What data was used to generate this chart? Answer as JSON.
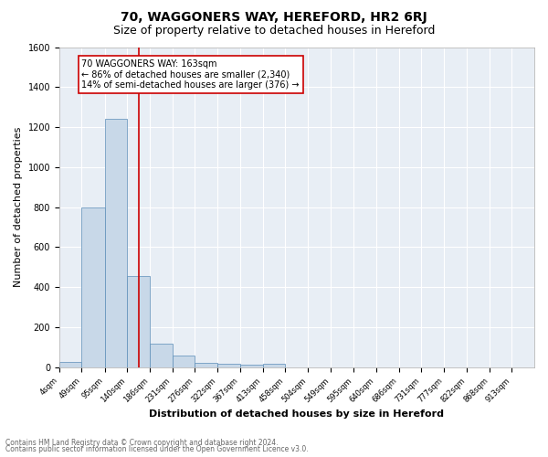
{
  "title": "70, WAGGONERS WAY, HEREFORD, HR2 6RJ",
  "subtitle": "Size of property relative to detached houses in Hereford",
  "xlabel": "Distribution of detached houses by size in Hereford",
  "ylabel": "Number of detached properties",
  "footnote1": "Contains HM Land Registry data © Crown copyright and database right 2024.",
  "footnote2": "Contains public sector information licensed under the Open Government Licence v3.0.",
  "bins": [
    "4sqm",
    "49sqm",
    "95sqm",
    "140sqm",
    "186sqm",
    "231sqm",
    "276sqm",
    "322sqm",
    "367sqm",
    "413sqm",
    "458sqm",
    "504sqm",
    "549sqm",
    "595sqm",
    "640sqm",
    "686sqm",
    "731sqm",
    "777sqm",
    "822sqm",
    "868sqm",
    "913sqm"
  ],
  "bin_edges": [
    4,
    49,
    95,
    140,
    186,
    231,
    276,
    322,
    367,
    413,
    458,
    504,
    549,
    595,
    640,
    686,
    731,
    777,
    822,
    868,
    913
  ],
  "bar_heights": [
    25,
    800,
    1240,
    455,
    120,
    60,
    20,
    18,
    15,
    18,
    0,
    0,
    0,
    0,
    0,
    0,
    0,
    0,
    0,
    0
  ],
  "bar_color": "#c8d8e8",
  "bar_edge_color": "#5b8db8",
  "property_value": 163,
  "vline_color": "#cc0000",
  "annotation_line1": "70 WAGGONERS WAY: 163sqm",
  "annotation_line2": "← 86% of detached houses are smaller (2,340)",
  "annotation_line3": "14% of semi-detached houses are larger (376) →",
  "annotation_box_color": "white",
  "annotation_box_edge": "#cc0000",
  "ylim": [
    0,
    1600
  ],
  "yticks": [
    0,
    200,
    400,
    600,
    800,
    1000,
    1200,
    1400,
    1600
  ],
  "plot_bg_color": "#e8eef5",
  "grid_color": "white",
  "title_fontsize": 10,
  "subtitle_fontsize": 9,
  "ylabel_fontsize": 8,
  "xlabel_fontsize": 8,
  "tick_fontsize": 6,
  "ytick_fontsize": 7,
  "annot_fontsize": 7,
  "footnote_fontsize": 5.5
}
